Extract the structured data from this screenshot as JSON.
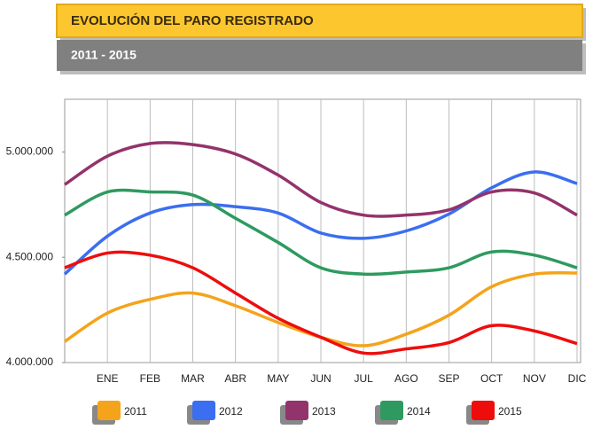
{
  "chart_data": {
    "type": "line",
    "title": "EVOLUCIÓN DEL PARO REGISTRADO",
    "subtitle": "2011 - 2015",
    "categories": [
      null,
      "ENE",
      "FEB",
      "MAR",
      "ABR",
      "MAY",
      "JUN",
      "JUL",
      "AGO",
      "SEP",
      "OCT",
      "NOV",
      "DIC"
    ],
    "series": [
      {
        "name": "2011",
        "color": "#f5a31a",
        "values": [
          4100000,
          4235000,
          4300000,
          4330000,
          4270000,
          4190000,
          4120000,
          4080000,
          4135000,
          4225000,
          4360000,
          4420000,
          4425000
        ]
      },
      {
        "name": "2012",
        "color": "#3b6ef0",
        "values": [
          4420000,
          4600000,
          4710000,
          4750000,
          4740000,
          4710000,
          4615000,
          4590000,
          4625000,
          4705000,
          4830000,
          4905000,
          4850000
        ]
      },
      {
        "name": "2013",
        "color": "#93336b",
        "values": [
          4845000,
          4980000,
          5040000,
          5035000,
          4990000,
          4890000,
          4760000,
          4700000,
          4700000,
          4725000,
          4810000,
          4805000,
          4700000
        ]
      },
      {
        "name": "2014",
        "color": "#2e9a5f",
        "values": [
          4700000,
          4810000,
          4810000,
          4795000,
          4685000,
          4570000,
          4450000,
          4420000,
          4430000,
          4450000,
          4525000,
          4510000,
          4450000
        ]
      },
      {
        "name": "2015",
        "color": "#ee0d0d",
        "values": [
          4450000,
          4520000,
          4510000,
          4450000,
          4330000,
          4210000,
          4120000,
          4045000,
          4065000,
          4095000,
          4175000,
          4150000,
          4090000
        ]
      }
    ],
    "ylim": [
      4000000,
      5250000
    ],
    "yticks": [
      {
        "value": 4000000,
        "label": "4.000.000"
      },
      {
        "value": 4500000,
        "label": "4.500.000"
      },
      {
        "value": 5000000,
        "label": "5.000.000"
      }
    ]
  }
}
